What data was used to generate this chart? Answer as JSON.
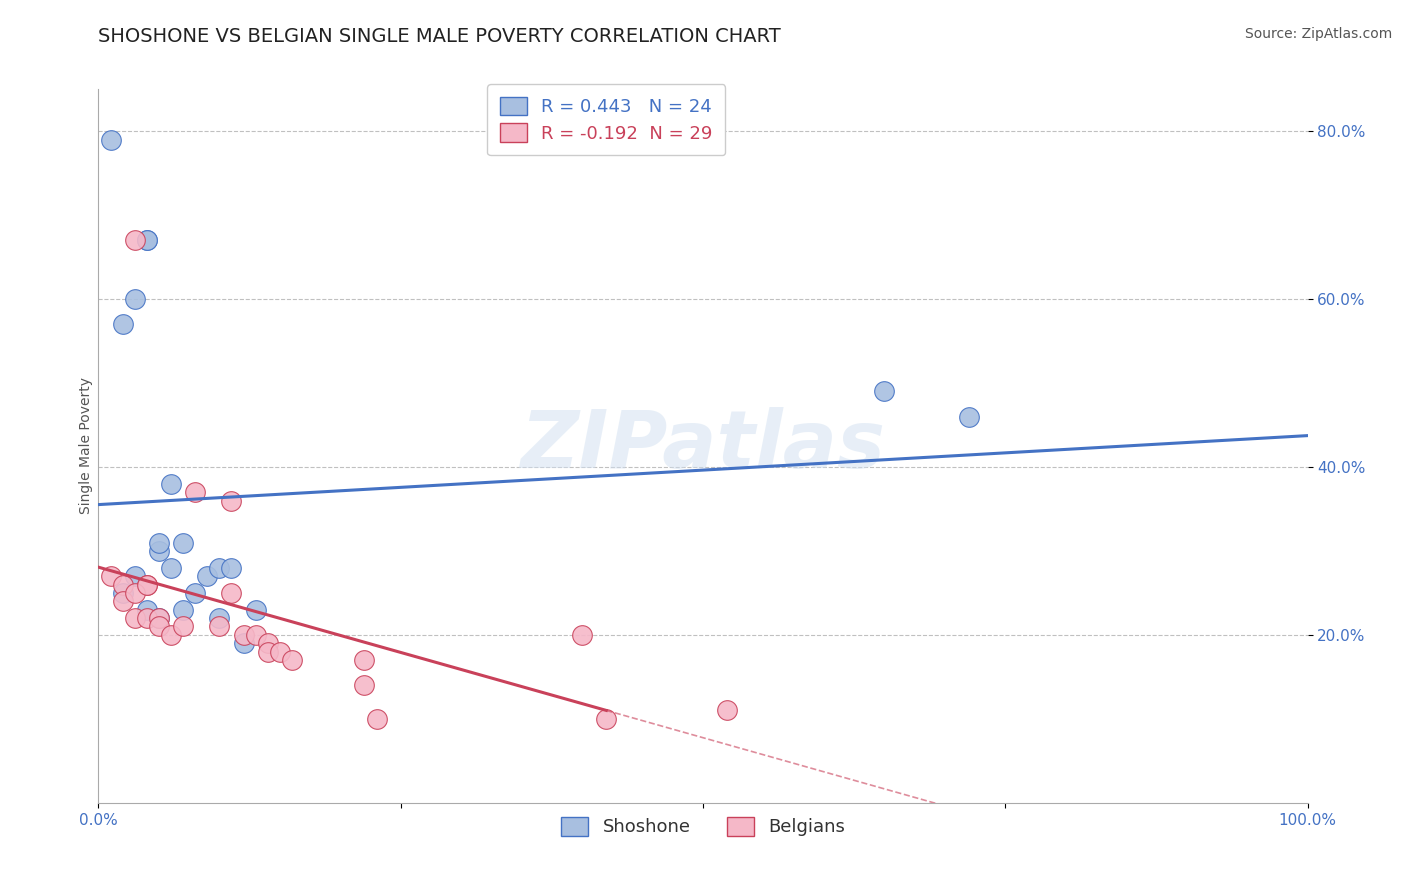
{
  "title": "SHOSHONE VS BELGIAN SINGLE MALE POVERTY CORRELATION CHART",
  "source_text": "Source: ZipAtlas.com",
  "ylabel": "Single Male Poverty",
  "watermark": "ZIPatlas",
  "xlim": [
    0.0,
    1.0
  ],
  "ylim": [
    0.0,
    0.85
  ],
  "xticks": [
    0.0,
    0.25,
    0.5,
    0.75,
    1.0
  ],
  "xticklabels": [
    "0.0%",
    "",
    "",
    "",
    "100.0%"
  ],
  "yticks": [
    0.2,
    0.4,
    0.6,
    0.8
  ],
  "yticklabels": [
    "20.0%",
    "40.0%",
    "60.0%",
    "80.0%"
  ],
  "shoshone_color": "#a8bfe0",
  "belgians_color": "#f5b8c8",
  "shoshone_R": 0.443,
  "shoshone_N": 24,
  "belgians_R": -0.192,
  "belgians_N": 29,
  "shoshone_line_color": "#4472c4",
  "belgians_line_color": "#c9415a",
  "grid_color": "#c0c0c0",
  "background_color": "#ffffff",
  "shoshone_x": [
    0.01,
    0.03,
    0.04,
    0.02,
    0.04,
    0.05,
    0.05,
    0.06,
    0.06,
    0.07,
    0.07,
    0.08,
    0.09,
    0.1,
    0.1,
    0.11,
    0.13,
    0.02,
    0.03,
    0.04,
    0.05,
    0.65,
    0.72,
    0.12
  ],
  "shoshone_y": [
    0.79,
    0.6,
    0.67,
    0.57,
    0.67,
    0.3,
    0.31,
    0.38,
    0.28,
    0.31,
    0.23,
    0.25,
    0.27,
    0.22,
    0.28,
    0.28,
    0.23,
    0.25,
    0.27,
    0.23,
    0.22,
    0.49,
    0.46,
    0.19
  ],
  "belgians_x": [
    0.03,
    0.04,
    0.01,
    0.02,
    0.02,
    0.03,
    0.03,
    0.04,
    0.04,
    0.05,
    0.05,
    0.06,
    0.07,
    0.08,
    0.1,
    0.11,
    0.11,
    0.12,
    0.13,
    0.14,
    0.14,
    0.15,
    0.16,
    0.22,
    0.22,
    0.23,
    0.4,
    0.52,
    0.42
  ],
  "belgians_y": [
    0.67,
    0.26,
    0.27,
    0.26,
    0.24,
    0.25,
    0.22,
    0.26,
    0.22,
    0.22,
    0.21,
    0.2,
    0.21,
    0.37,
    0.21,
    0.36,
    0.25,
    0.2,
    0.2,
    0.19,
    0.18,
    0.18,
    0.17,
    0.17,
    0.14,
    0.1,
    0.2,
    0.11,
    0.1
  ],
  "title_fontsize": 14,
  "axis_label_fontsize": 10,
  "tick_fontsize": 11,
  "legend_fontsize": 13,
  "source_fontsize": 10
}
